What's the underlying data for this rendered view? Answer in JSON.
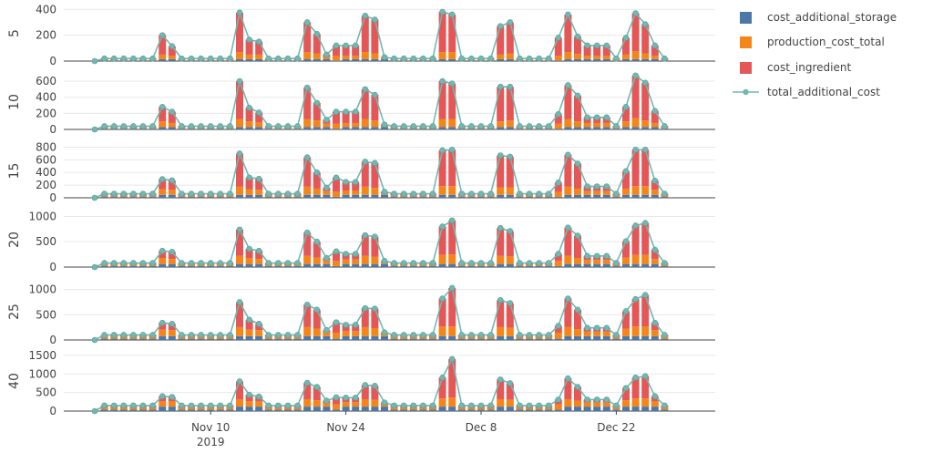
{
  "chart_data": {
    "type": "bar",
    "stacked": true,
    "legend_position": "right",
    "colors": {
      "cost_additional_storage": "#4c78a8",
      "production_cost_total": "#f58518",
      "cost_ingredient": "#e45756",
      "total_additional_cost": "#72b7b2"
    },
    "series_names": [
      "cost_additional_storage",
      "production_cost_total",
      "cost_ingredient",
      "total_additional_cost"
    ],
    "x_start": "2019-10-29",
    "x_tick_labels": [
      {
        "date": "2019-11-10",
        "label": "Nov 10",
        "sub": "2019"
      },
      {
        "date": "2019-11-24",
        "label": "Nov 24",
        "sub": ""
      },
      {
        "date": "2019-12-08",
        "label": "Dec 8",
        "sub": ""
      },
      {
        "date": "2019-12-22",
        "label": "Dec 22",
        "sub": ""
      }
    ],
    "panels": [
      {
        "ylabel": "5",
        "ylim": [
          0,
          430
        ],
        "yticks": [
          0,
          200,
          400
        ],
        "storage": [
          0,
          5,
          5,
          5,
          5,
          5,
          5,
          15,
          15,
          5,
          5,
          5,
          5,
          5,
          5,
          15,
          15,
          15,
          5,
          5,
          5,
          5,
          15,
          15,
          15,
          5,
          15,
          15,
          15,
          15,
          15,
          5,
          5,
          5,
          5,
          5,
          15,
          15,
          5,
          5,
          5,
          5,
          15,
          15,
          5,
          5,
          5,
          5,
          5,
          15,
          15,
          15,
          15,
          15,
          5,
          15,
          15,
          15,
          15,
          5
        ],
        "production": [
          0,
          8,
          8,
          8,
          8,
          8,
          8,
          35,
          25,
          8,
          8,
          8,
          8,
          8,
          8,
          55,
          35,
          35,
          8,
          8,
          8,
          8,
          55,
          45,
          20,
          35,
          25,
          25,
          55,
          45,
          8,
          8,
          8,
          8,
          8,
          8,
          55,
          55,
          8,
          8,
          8,
          8,
          35,
          45,
          8,
          8,
          8,
          8,
          35,
          55,
          40,
          25,
          25,
          25,
          8,
          35,
          60,
          45,
          25,
          8
        ],
        "ingredient": [
          0,
          7,
          7,
          7,
          7,
          7,
          7,
          150,
          75,
          7,
          7,
          7,
          7,
          7,
          7,
          305,
          115,
          100,
          7,
          7,
          7,
          7,
          230,
          150,
          15,
          80,
          80,
          80,
          280,
          260,
          7,
          7,
          7,
          7,
          7,
          7,
          310,
          290,
          7,
          7,
          7,
          7,
          220,
          240,
          7,
          7,
          7,
          7,
          140,
          290,
          135,
          80,
          80,
          80,
          7,
          130,
          295,
          225,
          80,
          7
        ]
      },
      {
        "ylabel": "10",
        "ylim": [
          0,
          680
        ],
        "yticks": [
          0,
          200,
          400,
          600
        ],
        "storage": [
          0,
          10,
          10,
          10,
          10,
          10,
          10,
          30,
          30,
          10,
          10,
          10,
          10,
          10,
          10,
          30,
          30,
          30,
          10,
          10,
          10,
          10,
          30,
          30,
          30,
          10,
          30,
          30,
          30,
          30,
          30,
          10,
          10,
          10,
          10,
          10,
          30,
          30,
          10,
          10,
          10,
          10,
          30,
          30,
          10,
          10,
          10,
          10,
          10,
          30,
          30,
          30,
          30,
          30,
          10,
          30,
          30,
          30,
          30,
          10
        ],
        "production": [
          0,
          15,
          15,
          15,
          15,
          15,
          15,
          70,
          50,
          15,
          15,
          15,
          15,
          15,
          15,
          100,
          70,
          60,
          15,
          15,
          15,
          15,
          100,
          80,
          40,
          60,
          50,
          50,
          100,
          80,
          15,
          15,
          15,
          15,
          15,
          15,
          100,
          100,
          15,
          15,
          15,
          15,
          70,
          80,
          15,
          15,
          15,
          15,
          60,
          100,
          70,
          50,
          50,
          50,
          15,
          70,
          110,
          80,
          50,
          15
        ],
        "ingredient": [
          0,
          15,
          15,
          15,
          15,
          15,
          15,
          180,
          140,
          15,
          15,
          15,
          15,
          15,
          15,
          470,
          170,
          120,
          15,
          15,
          15,
          15,
          390,
          220,
          50,
          150,
          140,
          140,
          370,
          320,
          15,
          15,
          15,
          15,
          15,
          15,
          470,
          440,
          15,
          15,
          15,
          15,
          430,
          420,
          15,
          15,
          15,
          15,
          120,
          420,
          320,
          70,
          70,
          70,
          15,
          180,
          530,
          470,
          150,
          15
        ]
      },
      {
        "ylabel": "15",
        "ylim": [
          0,
          850
        ],
        "yticks": [
          0,
          200,
          400,
          600,
          800
        ],
        "storage": [
          0,
          15,
          15,
          15,
          15,
          15,
          15,
          45,
          45,
          15,
          15,
          15,
          15,
          15,
          15,
          45,
          45,
          45,
          15,
          15,
          15,
          15,
          45,
          45,
          45,
          15,
          45,
          45,
          45,
          45,
          45,
          15,
          15,
          15,
          15,
          15,
          45,
          45,
          15,
          15,
          15,
          15,
          45,
          45,
          15,
          15,
          15,
          15,
          15,
          45,
          45,
          45,
          45,
          45,
          15,
          45,
          45,
          45,
          45,
          15
        ],
        "production": [
          0,
          25,
          25,
          25,
          25,
          25,
          25,
          90,
          80,
          25,
          25,
          25,
          25,
          25,
          25,
          130,
          90,
          80,
          25,
          25,
          25,
          25,
          130,
          100,
          60,
          80,
          70,
          70,
          130,
          110,
          25,
          25,
          25,
          25,
          25,
          25,
          140,
          140,
          25,
          25,
          25,
          25,
          120,
          120,
          25,
          25,
          25,
          25,
          80,
          130,
          100,
          60,
          60,
          60,
          25,
          100,
          140,
          140,
          80,
          25
        ],
        "ingredient": [
          0,
          25,
          25,
          25,
          25,
          25,
          25,
          160,
          150,
          25,
          25,
          25,
          25,
          25,
          25,
          525,
          185,
          175,
          25,
          25,
          25,
          25,
          465,
          255,
          55,
          225,
          135,
          135,
          395,
          395,
          25,
          25,
          25,
          25,
          25,
          25,
          565,
          575,
          25,
          25,
          25,
          25,
          505,
          485,
          25,
          25,
          25,
          25,
          145,
          505,
          395,
          75,
          75,
          75,
          25,
          275,
          575,
          575,
          145,
          25
        ]
      },
      {
        "ylabel": "20",
        "ylim": [
          0,
          1080
        ],
        "yticks": [
          0,
          500,
          1000
        ],
        "storage": [
          0,
          20,
          20,
          20,
          20,
          20,
          20,
          60,
          60,
          20,
          20,
          20,
          20,
          20,
          20,
          60,
          60,
          60,
          20,
          20,
          20,
          20,
          60,
          60,
          60,
          20,
          60,
          60,
          60,
          60,
          60,
          20,
          20,
          20,
          20,
          20,
          60,
          60,
          20,
          20,
          20,
          20,
          60,
          60,
          20,
          20,
          20,
          20,
          20,
          60,
          60,
          60,
          60,
          60,
          20,
          60,
          60,
          60,
          60,
          20
        ],
        "production": [
          0,
          35,
          35,
          35,
          35,
          35,
          35,
          120,
          100,
          35,
          35,
          35,
          35,
          35,
          35,
          160,
          120,
          100,
          35,
          35,
          35,
          35,
          160,
          130,
          70,
          100,
          90,
          90,
          160,
          140,
          35,
          35,
          35,
          35,
          35,
          35,
          180,
          190,
          35,
          35,
          35,
          35,
          160,
          150,
          35,
          35,
          35,
          35,
          100,
          160,
          120,
          80,
          80,
          80,
          35,
          130,
          180,
          180,
          100,
          35
        ],
        "ingredient": [
          0,
          25,
          25,
          25,
          25,
          25,
          25,
          140,
          140,
          25,
          25,
          25,
          25,
          25,
          25,
          520,
          180,
          160,
          25,
          25,
          25,
          25,
          460,
          310,
          50,
          190,
          110,
          110,
          410,
          400,
          25,
          25,
          25,
          25,
          25,
          25,
          560,
          670,
          25,
          25,
          25,
          25,
          550,
          500,
          25,
          25,
          25,
          25,
          140,
          560,
          440,
          80,
          80,
          80,
          25,
          320,
          580,
          630,
          180,
          25
        ]
      },
      {
        "ylabel": "25",
        "ylim": [
          0,
          1120
        ],
        "yticks": [
          0,
          500,
          1000
        ],
        "storage": [
          0,
          25,
          25,
          25,
          25,
          25,
          25,
          75,
          75,
          25,
          25,
          25,
          25,
          25,
          25,
          75,
          75,
          75,
          25,
          25,
          25,
          25,
          75,
          75,
          75,
          25,
          75,
          75,
          75,
          75,
          75,
          25,
          25,
          25,
          25,
          25,
          75,
          75,
          25,
          25,
          25,
          25,
          75,
          75,
          25,
          25,
          25,
          25,
          25,
          75,
          75,
          75,
          75,
          75,
          25,
          75,
          75,
          75,
          75,
          25
        ],
        "production": [
          0,
          45,
          45,
          45,
          45,
          45,
          45,
          130,
          120,
          45,
          45,
          45,
          45,
          45,
          45,
          180,
          130,
          120,
          45,
          45,
          45,
          45,
          180,
          150,
          80,
          120,
          100,
          100,
          180,
          160,
          45,
          45,
          45,
          45,
          45,
          45,
          190,
          190,
          45,
          45,
          45,
          45,
          180,
          170,
          45,
          45,
          45,
          45,
          120,
          180,
          140,
          90,
          90,
          90,
          45,
          150,
          190,
          190,
          120,
          45
        ],
        "ingredient": [
          0,
          30,
          30,
          30,
          30,
          30,
          30,
          135,
          125,
          30,
          30,
          30,
          30,
          30,
          30,
          495,
          195,
          125,
          30,
          30,
          30,
          30,
          445,
          375,
          40,
          205,
          125,
          125,
          375,
          385,
          30,
          30,
          30,
          30,
          30,
          30,
          555,
          765,
          30,
          30,
          30,
          30,
          535,
          485,
          30,
          30,
          30,
          30,
          135,
          565,
          385,
          75,
          75,
          75,
          30,
          345,
          545,
          625,
          145,
          30
        ]
      },
      {
        "ylabel": "40",
        "ylim": [
          0,
          1620
        ],
        "yticks": [
          0,
          500,
          1000,
          1500
        ],
        "storage": [
          0,
          40,
          40,
          40,
          40,
          40,
          40,
          120,
          120,
          40,
          40,
          40,
          40,
          40,
          40,
          120,
          120,
          120,
          40,
          40,
          40,
          40,
          120,
          120,
          120,
          40,
          120,
          120,
          120,
          120,
          120,
          40,
          40,
          40,
          40,
          40,
          120,
          120,
          40,
          40,
          40,
          40,
          120,
          120,
          40,
          40,
          40,
          40,
          40,
          120,
          120,
          120,
          120,
          120,
          40,
          120,
          120,
          120,
          120,
          40
        ],
        "production": [
          0,
          65,
          65,
          65,
          65,
          65,
          65,
          140,
          140,
          65,
          65,
          65,
          65,
          65,
          65,
          200,
          150,
          140,
          65,
          65,
          65,
          65,
          200,
          170,
          100,
          140,
          120,
          120,
          200,
          180,
          65,
          65,
          65,
          65,
          65,
          65,
          220,
          240,
          65,
          65,
          65,
          65,
          200,
          190,
          65,
          65,
          65,
          65,
          140,
          200,
          160,
          110,
          110,
          110,
          65,
          170,
          220,
          220,
          140,
          65
        ],
        "ingredient": [
          0,
          45,
          45,
          45,
          45,
          45,
          45,
          140,
          120,
          45,
          45,
          45,
          45,
          45,
          45,
          480,
          170,
          130,
          45,
          45,
          45,
          45,
          440,
          360,
          60,
          190,
          120,
          120,
          380,
          380,
          45,
          45,
          45,
          45,
          45,
          45,
          560,
          1040,
          45,
          45,
          45,
          45,
          530,
          440,
          45,
          45,
          45,
          45,
          130,
          560,
          370,
          80,
          80,
          80,
          45,
          330,
          560,
          600,
          140,
          45
        ]
      }
    ]
  }
}
